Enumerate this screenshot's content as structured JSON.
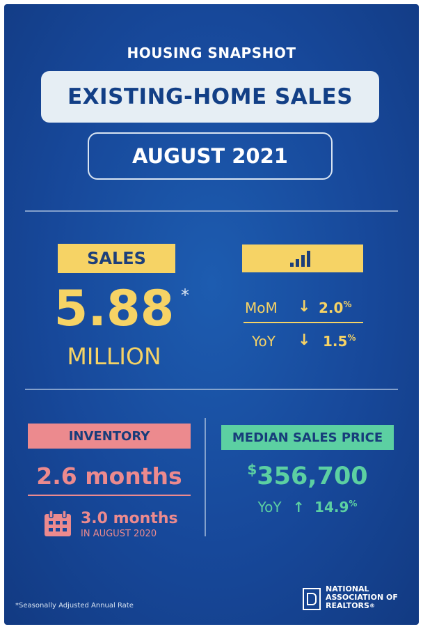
{
  "kicker": "HOUSING SNAPSHOT",
  "title": "EXISTING-HOME SALES",
  "period": "AUGUST 2021",
  "sales": {
    "label": "SALES",
    "value": "5.88",
    "asterisk": "*",
    "unit": "MILLION",
    "mom_label": "MoM",
    "mom_value": "2.0",
    "yoy_label": "YoY",
    "yoy_value": "1.5",
    "percent": "%",
    "icon": "bar-chart-icon",
    "direction_icon": "arrow-down-icon"
  },
  "inventory": {
    "label": "INVENTORY",
    "value": "2.6 months",
    "prior_value": "3.0 months",
    "prior_period": "IN AUGUST 2020",
    "icon": "calendar-icon"
  },
  "median_price": {
    "label": "MEDIAN SALES PRICE",
    "currency": "$",
    "value": "356,700",
    "yoy_label": "YoY",
    "yoy_value": "14.9",
    "percent": "%",
    "direction_icon": "arrow-up-icon"
  },
  "footnote": "*Seasonally Adjusted Annual Rate",
  "org": {
    "line1": "NATIONAL",
    "line2": "ASSOCIATION OF",
    "line3": "REALTORS",
    "reg": "®"
  },
  "colors": {
    "background": "#17489a",
    "yellow": "#f6d365",
    "pink": "#ec8a8e",
    "green": "#5cd0a2",
    "pill": "#e6eef4"
  }
}
